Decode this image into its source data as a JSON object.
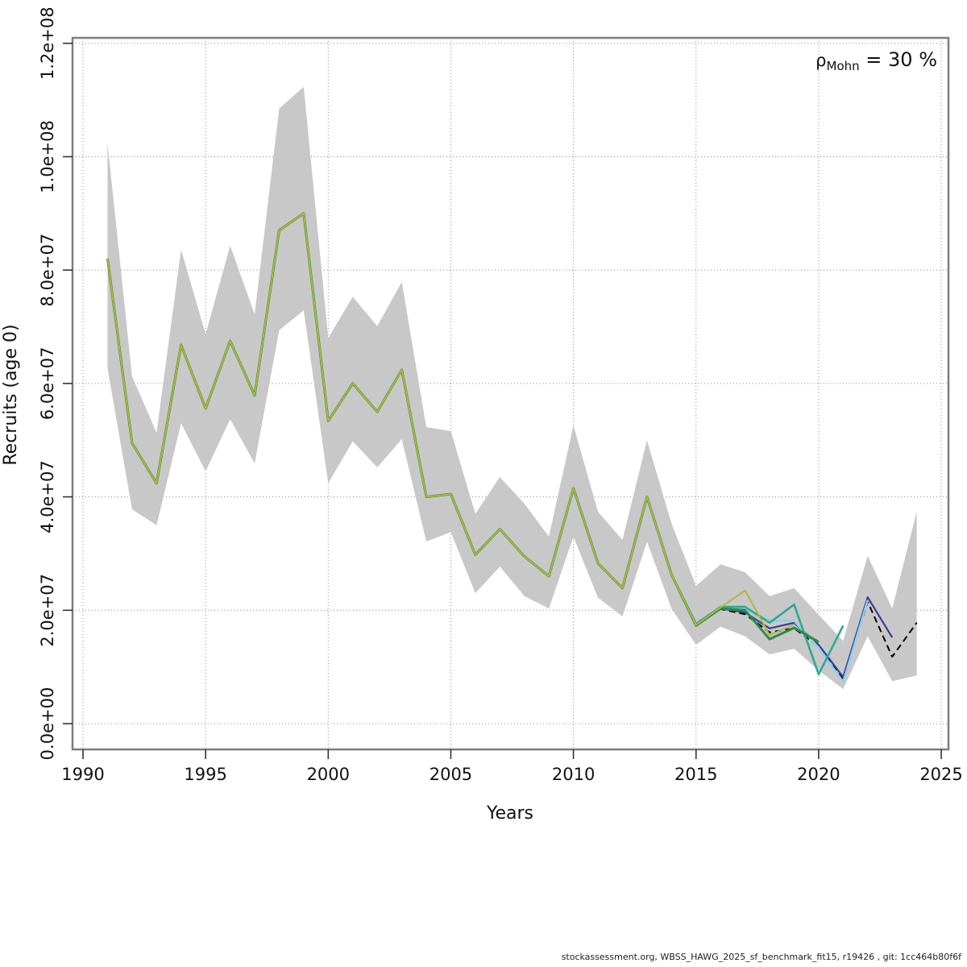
{
  "annotation": {
    "rho": "ρ",
    "sub": "Mohn",
    "rest": " = 30 %"
  },
  "axes": {
    "x_label": "Years",
    "y_label": "Recruits (age 0)",
    "x_ticks": [
      {
        "label": "1990",
        "year": 1990
      },
      {
        "label": "1995",
        "year": 1995
      },
      {
        "label": "2000",
        "year": 2000
      },
      {
        "label": "2005",
        "year": 2005
      },
      {
        "label": "2010",
        "year": 2010
      },
      {
        "label": "2015",
        "year": 2015
      },
      {
        "label": "2020",
        "year": 2020
      },
      {
        "label": "2025",
        "year": 2025
      }
    ],
    "y_ticks": [
      {
        "label": "0.0e+00",
        "value": 0
      },
      {
        "label": "2.0e+07",
        "value": 20000000.0
      },
      {
        "label": "4.0e+07",
        "value": 40000000.0
      },
      {
        "label": "6.0e+07",
        "value": 60000000.0
      },
      {
        "label": "8.0e+07",
        "value": 80000000.0
      },
      {
        "label": "1.0e+08",
        "value": 100000000.0
      },
      {
        "label": "1.2e+08",
        "value": 120000000.0
      }
    ]
  },
  "footer": "stockassessment.org, WBSS_HAWG_2025_sf_benchmark_fit15, r19426 , git: 1cc464b80f6f",
  "colors": {
    "band": "#c8c8c8",
    "grid": "#8a8a8a",
    "box": "#7d7d7d",
    "final_run": "#000000",
    "peel_2023": "#3b3b9c",
    "peel_2022": "#8fd0ea",
    "peel_2021": "#2fa893",
    "peel_2020": "#2c8b44",
    "peel_2019": "#b3b63c"
  },
  "chart_data": {
    "type": "line",
    "title": "",
    "xlabel": "Years",
    "ylabel": "Recruits (age 0)",
    "xlim": [
      1989.6,
      2025.4
    ],
    "ylim": [
      0,
      120000000.0
    ],
    "grid": "dotted",
    "legend": "none",
    "annotation": "rho_Mohn = 30 %",
    "years": [
      1991,
      1992,
      1993,
      1994,
      1995,
      1996,
      1997,
      1998,
      1999,
      2000,
      2001,
      2002,
      2003,
      2004,
      2005,
      2006,
      2007,
      2008,
      2009,
      2010,
      2011,
      2012,
      2013,
      2014,
      2015,
      2016,
      2017,
      2018,
      2019,
      2020,
      2021,
      2022,
      2023,
      2024
    ],
    "band": {
      "name": "confidence-band",
      "lower": [
        62700000.0,
        37800000.0,
        35000000.0,
        53000000.0,
        44500000.0,
        53700000.0,
        45900000.0,
        69400000.0,
        72900000.0,
        42400000.0,
        49800000.0,
        45200000.0,
        50200000.0,
        32100000.0,
        33800000.0,
        23000000.0,
        27700000.0,
        22500000.0,
        20300000.0,
        33000000.0,
        22200000.0,
        18900000.0,
        32100000.0,
        20300000.0,
        13900000.0,
        17100000.0,
        15400000.0,
        12200000.0,
        13200000.0,
        9400000.0,
        6100000.0,
        15400000.0,
        7500000.0,
        8500000.0
      ],
      "upper": [
        102400000.0,
        61300000.0,
        51300000.0,
        83600000.0,
        68700000.0,
        84300000.0,
        72200000.0,
        108500000.0,
        112300000.0,
        68000000.0,
        75300000.0,
        70100000.0,
        77900000.0,
        52300000.0,
        51600000.0,
        37000000.0,
        43500000.0,
        38800000.0,
        33000000.0,
        52600000.0,
        37400000.0,
        32400000.0,
        50000000.0,
        35300000.0,
        24300000.0,
        28100000.0,
        26700000.0,
        22500000.0,
        23900000.0,
        19200000.0,
        14600000.0,
        29600000.0,
        20300000.0,
        37400000.0
      ]
    },
    "series": [
      {
        "name": "final-run-2024",
        "style": "dashed",
        "color_key": "final_run",
        "width": 2,
        "values": [
          82000000.0,
          49500000.0,
          42400000.0,
          66800000.0,
          55600000.0,
          67500000.0,
          57900000.0,
          87000000.0,
          90000000.0,
          53400000.0,
          60000000.0,
          55000000.0,
          62400000.0,
          40000000.0,
          40500000.0,
          29800000.0,
          34300000.0,
          29500000.0,
          26000000.0,
          41500000.0,
          28300000.0,
          23900000.0,
          40000000.0,
          26300000.0,
          17500000.0,
          20200000.0,
          19300000.0,
          16100000.0,
          16800000.0,
          13700000.0,
          7800000.0,
          21500000.0,
          11800000.0,
          17800000.0
        ]
      },
      {
        "name": "retro-peel-2023",
        "style": "solid",
        "color_key": "peel_2023",
        "width": 2.2,
        "values": [
          82000000.0,
          49500000.0,
          42400000.0,
          66800000.0,
          55600000.0,
          67500000.0,
          57900000.0,
          87000000.0,
          90000000.0,
          53400000.0,
          60000000.0,
          55000000.0,
          62400000.0,
          40000000.0,
          40500000.0,
          29800000.0,
          34300000.0,
          29500000.0,
          26000000.0,
          41500000.0,
          28300000.0,
          23900000.0,
          40000000.0,
          26300000.0,
          17500000.0,
          20300000.0,
          19600000.0,
          16800000.0,
          17800000.0,
          13900000.0,
          8200000.0,
          22300000.0,
          15200000.0
        ]
      },
      {
        "name": "retro-peel-2022",
        "style": "solid",
        "color_key": "peel_2022",
        "width": 2.4,
        "values": [
          82000000.0,
          49500000.0,
          42400000.0,
          66800000.0,
          55600000.0,
          67500000.0,
          57900000.0,
          87000000.0,
          90000000.0,
          53400000.0,
          60000000.0,
          55000000.0,
          62400000.0,
          40000000.0,
          40500000.0,
          29800000.0,
          34300000.0,
          29500000.0,
          26000000.0,
          41500000.0,
          28300000.0,
          23900000.0,
          40000000.0,
          26300000.0,
          17500000.0,
          20400000.0,
          20200000.0,
          18200000.0,
          18100000.0,
          13400000.0,
          7400000.0,
          21800000.0
        ]
      },
      {
        "name": "retro-peel-2021",
        "style": "solid",
        "color_key": "peel_2021",
        "width": 2.6,
        "values": [
          82000000.0,
          49500000.0,
          42400000.0,
          66800000.0,
          55600000.0,
          67500000.0,
          57900000.0,
          87000000.0,
          90000000.0,
          53400000.0,
          60000000.0,
          55000000.0,
          62400000.0,
          40000000.0,
          40500000.0,
          29800000.0,
          34300000.0,
          29500000.0,
          26000000.0,
          41500000.0,
          28300000.0,
          23900000.0,
          40000000.0,
          26300000.0,
          17600000.0,
          20600000.0,
          20600000.0,
          17800000.0,
          21000000.0,
          8700000.0,
          17300000.0
        ]
      },
      {
        "name": "retro-peel-2020",
        "style": "solid",
        "color_key": "peel_2020",
        "width": 3,
        "values": [
          82000000.0,
          49500000.0,
          42400000.0,
          66800000.0,
          55600000.0,
          67500000.0,
          57900000.0,
          87000000.0,
          90000000.0,
          53400000.0,
          60000000.0,
          55000000.0,
          62400000.0,
          40000000.0,
          40500000.0,
          29800000.0,
          34300000.0,
          29500000.0,
          26000000.0,
          41500000.0,
          28300000.0,
          23900000.0,
          40000000.0,
          26300000.0,
          17300000.0,
          20300000.0,
          20000000.0,
          14900000.0,
          16900000.0,
          14400000.0
        ]
      },
      {
        "name": "retro-peel-2019",
        "style": "solid",
        "color_key": "peel_2019",
        "width": 2,
        "values": [
          82000000.0,
          49500000.0,
          42400000.0,
          66800000.0,
          55600000.0,
          67500000.0,
          57900000.0,
          87000000.0,
          90000000.0,
          53400000.0,
          60000000.0,
          55000000.0,
          62400000.0,
          40000000.0,
          40500000.0,
          29800000.0,
          34300000.0,
          29500000.0,
          26000000.0,
          41500000.0,
          28300000.0,
          23900000.0,
          40000000.0,
          26300000.0,
          17400000.0,
          20500000.0,
          23500000.0,
          15600000.0,
          17500000.0
        ]
      }
    ]
  }
}
